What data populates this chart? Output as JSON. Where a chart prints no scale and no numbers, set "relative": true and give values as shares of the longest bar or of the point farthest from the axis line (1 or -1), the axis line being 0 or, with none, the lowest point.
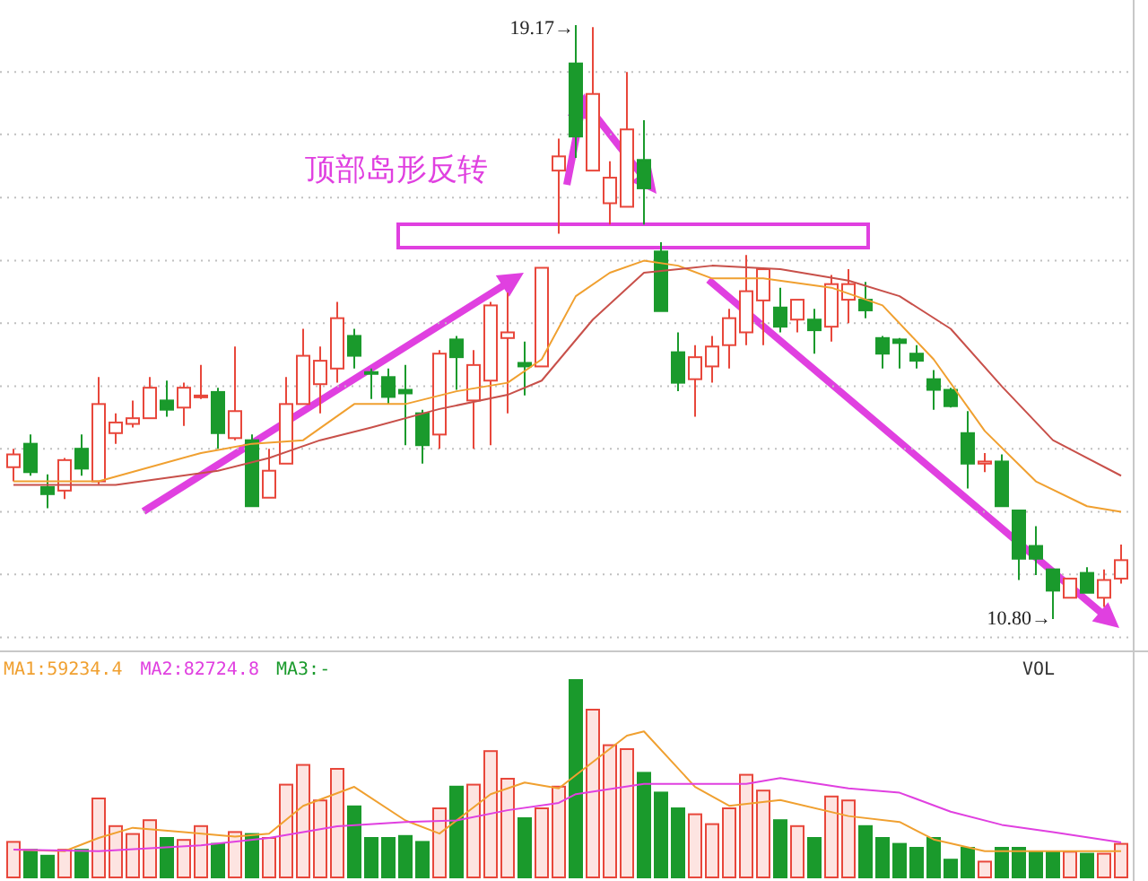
{
  "chart_data": [
    {
      "type": "candlestick",
      "grid": "y",
      "categories": [
        null,
        null,
        null,
        null,
        null,
        null,
        null,
        null,
        null,
        null,
        null,
        null,
        null,
        null,
        null,
        null,
        null,
        null,
        null,
        null,
        null,
        null,
        null,
        null,
        null,
        null,
        null,
        null,
        null,
        null,
        null,
        null,
        null,
        null,
        null,
        null,
        null,
        null,
        null,
        null,
        null,
        null,
        null,
        null,
        null,
        null,
        null,
        null,
        null,
        null,
        null,
        null,
        null,
        null,
        null,
        null,
        null,
        null,
        null,
        null,
        null,
        null,
        null,
        null,
        null,
        null
      ],
      "ohlc": [
        [
          12.94,
          13.2,
          12.74,
          13.12
        ],
        [
          13.27,
          13.4,
          12.82,
          12.87
        ],
        [
          12.66,
          12.84,
          12.36,
          12.56
        ],
        [
          12.61,
          13.07,
          12.49,
          13.04
        ],
        [
          13.2,
          13.4,
          12.82,
          12.92
        ],
        [
          12.74,
          14.21,
          12.7,
          13.83
        ],
        [
          13.42,
          13.7,
          13.27,
          13.57
        ],
        [
          13.55,
          13.88,
          13.5,
          13.63
        ],
        [
          13.63,
          14.21,
          13.63,
          14.06
        ],
        [
          13.88,
          14.16,
          13.65,
          13.75
        ],
        [
          13.78,
          14.13,
          13.52,
          14.06
        ],
        [
          13.93,
          14.38,
          13.9,
          13.95
        ],
        [
          14.0,
          14.06,
          13.2,
          13.42
        ],
        [
          13.35,
          14.64,
          13.32,
          13.73
        ],
        [
          13.32,
          13.4,
          12.39,
          12.39
        ],
        [
          12.51,
          13.2,
          12.51,
          12.89
        ],
        [
          12.99,
          14.21,
          12.99,
          13.83
        ],
        [
          13.83,
          14.89,
          13.83,
          14.51
        ],
        [
          14.11,
          14.64,
          13.7,
          14.44
        ],
        [
          14.33,
          15.27,
          14.13,
          15.04
        ],
        [
          14.79,
          14.89,
          14.33,
          14.51
        ],
        [
          14.28,
          14.33,
          13.9,
          14.26
        ],
        [
          14.21,
          14.33,
          13.83,
          13.93
        ],
        [
          14.03,
          14.38,
          13.25,
          13.98
        ],
        [
          13.7,
          13.75,
          12.99,
          13.25
        ],
        [
          13.4,
          14.59,
          13.2,
          14.54
        ],
        [
          14.74,
          14.79,
          14.03,
          14.49
        ],
        [
          13.88,
          14.59,
          13.2,
          14.38
        ],
        [
          14.16,
          15.27,
          13.25,
          15.22
        ],
        [
          14.76,
          15.4,
          13.7,
          14.84
        ],
        [
          14.41,
          14.71,
          13.95,
          14.36
        ],
        [
          14.36,
          15.75,
          14.36,
          15.75
        ],
        [
          17.12,
          17.57,
          16.23,
          17.32
        ],
        [
          18.63,
          19.17,
          17.3,
          17.6
        ],
        [
          17.12,
          19.14,
          17.12,
          18.2
        ],
        [
          16.66,
          17.25,
          16.36,
          17.02
        ],
        [
          16.61,
          18.51,
          16.61,
          17.7
        ],
        [
          17.27,
          17.83,
          16.36,
          16.87
        ],
        [
          15.98,
          16.11,
          15.14,
          15.14
        ],
        [
          14.56,
          14.84,
          14.01,
          14.13
        ],
        [
          14.18,
          14.66,
          13.65,
          14.49
        ],
        [
          14.36,
          14.79,
          14.13,
          14.64
        ],
        [
          14.66,
          15.17,
          14.33,
          15.04
        ],
        [
          14.84,
          15.93,
          14.66,
          15.42
        ],
        [
          15.29,
          15.73,
          14.66,
          15.73
        ],
        [
          15.19,
          15.47,
          14.84,
          14.92
        ],
        [
          15.02,
          15.3,
          14.84,
          15.3
        ],
        [
          15.02,
          15.17,
          14.54,
          14.87
        ],
        [
          14.92,
          15.65,
          14.71,
          15.52
        ],
        [
          15.3,
          15.73,
          14.97,
          15.52
        ],
        [
          15.3,
          15.55,
          15.04,
          15.15
        ],
        [
          14.76,
          14.79,
          14.33,
          14.54
        ],
        [
          14.74,
          14.76,
          14.33,
          14.69
        ],
        [
          14.54,
          14.66,
          14.33,
          14.44
        ],
        [
          14.18,
          14.31,
          13.75,
          14.03
        ],
        [
          14.03,
          14.06,
          13.78,
          13.8
        ],
        [
          13.42,
          13.73,
          12.64,
          12.99
        ],
        [
          12.99,
          13.14,
          12.87,
          13.02
        ],
        [
          13.02,
          13.12,
          12.39,
          12.39
        ],
        [
          12.33,
          12.33,
          11.35,
          11.65
        ],
        [
          11.83,
          12.11,
          11.42,
          11.65
        ],
        [
          11.5,
          11.5,
          10.8,
          11.2
        ],
        [
          11.1,
          11.37,
          11.1,
          11.37
        ],
        [
          11.45,
          11.53,
          11.17,
          11.17
        ],
        [
          11.1,
          11.5,
          10.97,
          11.35
        ],
        [
          11.37,
          11.85,
          11.3,
          11.63
        ]
      ],
      "colors": [
        "#e8473b",
        "#1a9a2c",
        "#1a9a2c",
        "#e8473b",
        "#1a9a2c",
        "#e8473b",
        "#e8473b",
        "#e8473b",
        "#e8473b",
        "#1a9a2c",
        "#e8473b",
        "#e8473b",
        "#1a9a2c",
        "#e8473b",
        "#1a9a2c",
        "#e8473b",
        "#e8473b",
        "#e8473b",
        "#e8473b",
        "#e8473b",
        "#1a9a2c",
        "#1a9a2c",
        "#1a9a2c",
        "#1a9a2c",
        "#1a9a2c",
        "#e8473b",
        "#1a9a2c",
        "#e8473b",
        "#e8473b",
        "#e8473b",
        "#1a9a2c",
        "#e8473b",
        "#e8473b",
        "#1a9a2c",
        "#e8473b",
        "#e8473b",
        "#e8473b",
        "#1a9a2c",
        "#1a9a2c",
        "#1a9a2c",
        "#e8473b",
        "#e8473b",
        "#e8473b",
        "#e8473b",
        "#e8473b",
        "#1a9a2c",
        "#e8473b",
        "#1a9a2c",
        "#e8473b",
        "#e8473b",
        "#1a9a2c",
        "#1a9a2c",
        "#1a9a2c",
        "#1a9a2c",
        "#1a9a2c",
        "#1a9a2c",
        "#1a9a2c",
        "#e8473b",
        "#1a9a2c",
        "#1a9a2c",
        "#1a9a2c",
        "#1a9a2c",
        "#e8473b",
        "#1a9a2c",
        "#e8473b",
        "#e8473b"
      ],
      "series": [
        {
          "type": "line",
          "color": "#f0a030",
          "values": [
            12.74,
            null,
            null,
            null,
            null,
            12.74,
            null,
            null,
            null,
            null,
            null,
            13.14,
            null,
            null,
            13.27,
            null,
            null,
            13.32,
            null,
            null,
            13.83,
            null,
            null,
            13.83,
            null,
            null,
            14.01,
            null,
            null,
            14.13,
            null,
            14.46,
            null,
            15.35,
            null,
            15.68,
            null,
            15.85,
            null,
            15.78,
            null,
            15.6,
            null,
            null,
            15.6,
            null,
            null,
            null,
            15.47,
            null,
            null,
            15.22,
            null,
            null,
            14.46,
            null,
            null,
            13.45,
            null,
            null,
            12.74,
            null,
            null,
            12.39,
            null,
            12.31
          ]
        },
        {
          "type": "line",
          "color": "#c8504a",
          "values": [
            12.69,
            null,
            null,
            null,
            null,
            null,
            12.69,
            null,
            null,
            null,
            null,
            null,
            12.89,
            null,
            null,
            13.07,
            null,
            null,
            13.32,
            null,
            null,
            13.5,
            null,
            null,
            null,
            13.76,
            null,
            null,
            null,
            13.96,
            null,
            14.16,
            null,
            null,
            15.02,
            null,
            null,
            15.68,
            null,
            null,
            null,
            15.78,
            null,
            null,
            null,
            15.73,
            null,
            null,
            null,
            15.57,
            null,
            null,
            15.35,
            null,
            null,
            14.89,
            null,
            null,
            14.08,
            null,
            null,
            13.32,
            null,
            null,
            null,
            12.82
          ]
        }
      ],
      "yticks": [
        {
          "value": 18.51,
          "label": null
        },
        {
          "value": 17.63,
          "label": null
        },
        {
          "value": 16.74,
          "label": null
        },
        {
          "value": 15.85,
          "label": null
        },
        {
          "value": 14.97,
          "label": null
        },
        {
          "value": 14.08,
          "label": null
        },
        {
          "value": 13.2,
          "label": null
        },
        {
          "value": 12.31,
          "label": null
        },
        {
          "value": 11.43,
          "label": null
        },
        {
          "value": 10.54,
          "label": null
        }
      ],
      "annotations": [
        "19.17→",
        "10.80→",
        "顶部岛形反转"
      ]
    },
    {
      "type": "bar",
      "relative": true,
      "categories": [
        null,
        null,
        null,
        null,
        null,
        null,
        null,
        null,
        null,
        null,
        null,
        null,
        null,
        null,
        null,
        null,
        null,
        null,
        null,
        null,
        null,
        null,
        null,
        null,
        null,
        null,
        null,
        null,
        null,
        null,
        null,
        null,
        null,
        null,
        null,
        null,
        null,
        null,
        null,
        null,
        null,
        null,
        null,
        null,
        null,
        null,
        null,
        null,
        null,
        null,
        null,
        null,
        null,
        null,
        null,
        null,
        null,
        null,
        null,
        null,
        null,
        null,
        null,
        null,
        null,
        null
      ],
      "values": [
        0.18,
        0.14,
        0.11,
        0.14,
        0.14,
        0.4,
        0.26,
        0.22,
        0.29,
        0.2,
        0.19,
        0.26,
        0.17,
        0.23,
        0.22,
        0.2,
        0.47,
        0.57,
        0.39,
        0.55,
        0.36,
        0.2,
        0.2,
        0.21,
        0.18,
        0.35,
        0.46,
        0.47,
        0.64,
        0.5,
        0.3,
        0.35,
        0.46,
        1,
        0.85,
        0.67,
        0.65,
        0.53,
        0.43,
        0.35,
        0.32,
        0.27,
        0.35,
        0.52,
        0.44,
        0.29,
        0.26,
        0.2,
        0.41,
        0.39,
        0.26,
        0.2,
        0.17,
        0.15,
        0.2,
        0.09,
        0.15,
        0.08,
        0.15,
        0.15,
        0.13,
        0.13,
        0.13,
        0.12,
        0.12,
        0.17
      ],
      "colors": [
        "#e8473b",
        "#1a9a2c",
        "#1a9a2c",
        "#e8473b",
        "#1a9a2c",
        "#e8473b",
        "#e8473b",
        "#e8473b",
        "#e8473b",
        "#1a9a2c",
        "#e8473b",
        "#e8473b",
        "#1a9a2c",
        "#e8473b",
        "#1a9a2c",
        "#e8473b",
        "#e8473b",
        "#e8473b",
        "#e8473b",
        "#e8473b",
        "#1a9a2c",
        "#1a9a2c",
        "#1a9a2c",
        "#1a9a2c",
        "#1a9a2c",
        "#e8473b",
        "#1a9a2c",
        "#e8473b",
        "#e8473b",
        "#e8473b",
        "#1a9a2c",
        "#e8473b",
        "#e8473b",
        "#1a9a2c",
        "#e8473b",
        "#e8473b",
        "#e8473b",
        "#1a9a2c",
        "#1a9a2c",
        "#1a9a2c",
        "#e8473b",
        "#e8473b",
        "#e8473b",
        "#e8473b",
        "#e8473b",
        "#1a9a2c",
        "#e8473b",
        "#1a9a2c",
        "#e8473b",
        "#e8473b",
        "#1a9a2c",
        "#1a9a2c",
        "#1a9a2c",
        "#1a9a2c",
        "#1a9a2c",
        "#1a9a2c",
        "#1a9a2c",
        "#e8473b",
        "#1a9a2c",
        "#1a9a2c",
        "#1a9a2c",
        "#1a9a2c",
        "#e8473b",
        "#1a9a2c",
        "#e8473b",
        "#e8473b"
      ],
      "annotations": [
        "MA3:-",
        "VOL"
      ]
    },
    {
      "type": "line",
      "relative": true,
      "categories": [
        null,
        null,
        null,
        null,
        null,
        null,
        null,
        null,
        null,
        null,
        null,
        null,
        null,
        null,
        null,
        null,
        null,
        null,
        null,
        null,
        null,
        null,
        null,
        null,
        null,
        null,
        null,
        null,
        null,
        null,
        null,
        null,
        null,
        null,
        null,
        null,
        null,
        null,
        null,
        null,
        null,
        null,
        null,
        null,
        null,
        null,
        null,
        null,
        null,
        null,
        null,
        null,
        null,
        null,
        null,
        null,
        null,
        null,
        null,
        null,
        null,
        null,
        null,
        null,
        null,
        null
      ],
      "series": [
        {
          "name": "MA1:59234.4",
          "color": "#f0a030",
          "values": [
            0.19,
            null,
            null,
            0.18,
            null,
            0.27,
            null,
            0.34,
            null,
            null,
            0.31,
            null,
            null,
            0.28,
            null,
            0.3,
            null,
            0.49,
            null,
            null,
            0.62,
            null,
            null,
            0.39,
            null,
            0.3,
            null,
            null,
            0.57,
            null,
            0.65,
            null,
            0.61,
            0.7,
            null,
            null,
            0.97,
            1,
            null,
            null,
            0.62,
            null,
            0.49,
            null,
            null,
            0.53,
            null,
            null,
            null,
            0.42,
            null,
            null,
            0.38,
            null,
            0.26,
            null,
            null,
            0.18,
            null,
            null,
            0.18,
            null,
            null,
            null,
            null,
            0.18
          ]
        },
        {
          "name": "MA2:82724.8",
          "color": "#e040e0",
          "values": [
            0.19,
            null,
            null,
            null,
            null,
            0.18,
            null,
            null,
            null,
            null,
            null,
            0.22,
            null,
            null,
            null,
            0.27,
            null,
            null,
            null,
            0.35,
            null,
            null,
            null,
            0.38,
            null,
            null,
            0.39,
            null,
            null,
            0.46,
            null,
            null,
            0.51,
            0.57,
            null,
            null,
            null,
            0.64,
            null,
            null,
            null,
            null,
            null,
            0.64,
            null,
            0.68,
            null,
            null,
            null,
            0.61,
            null,
            null,
            0.58,
            null,
            null,
            0.45,
            null,
            null,
            0.36,
            null,
            null,
            0.31,
            null,
            null,
            null,
            0.24
          ]
        }
      ]
    }
  ]
}
